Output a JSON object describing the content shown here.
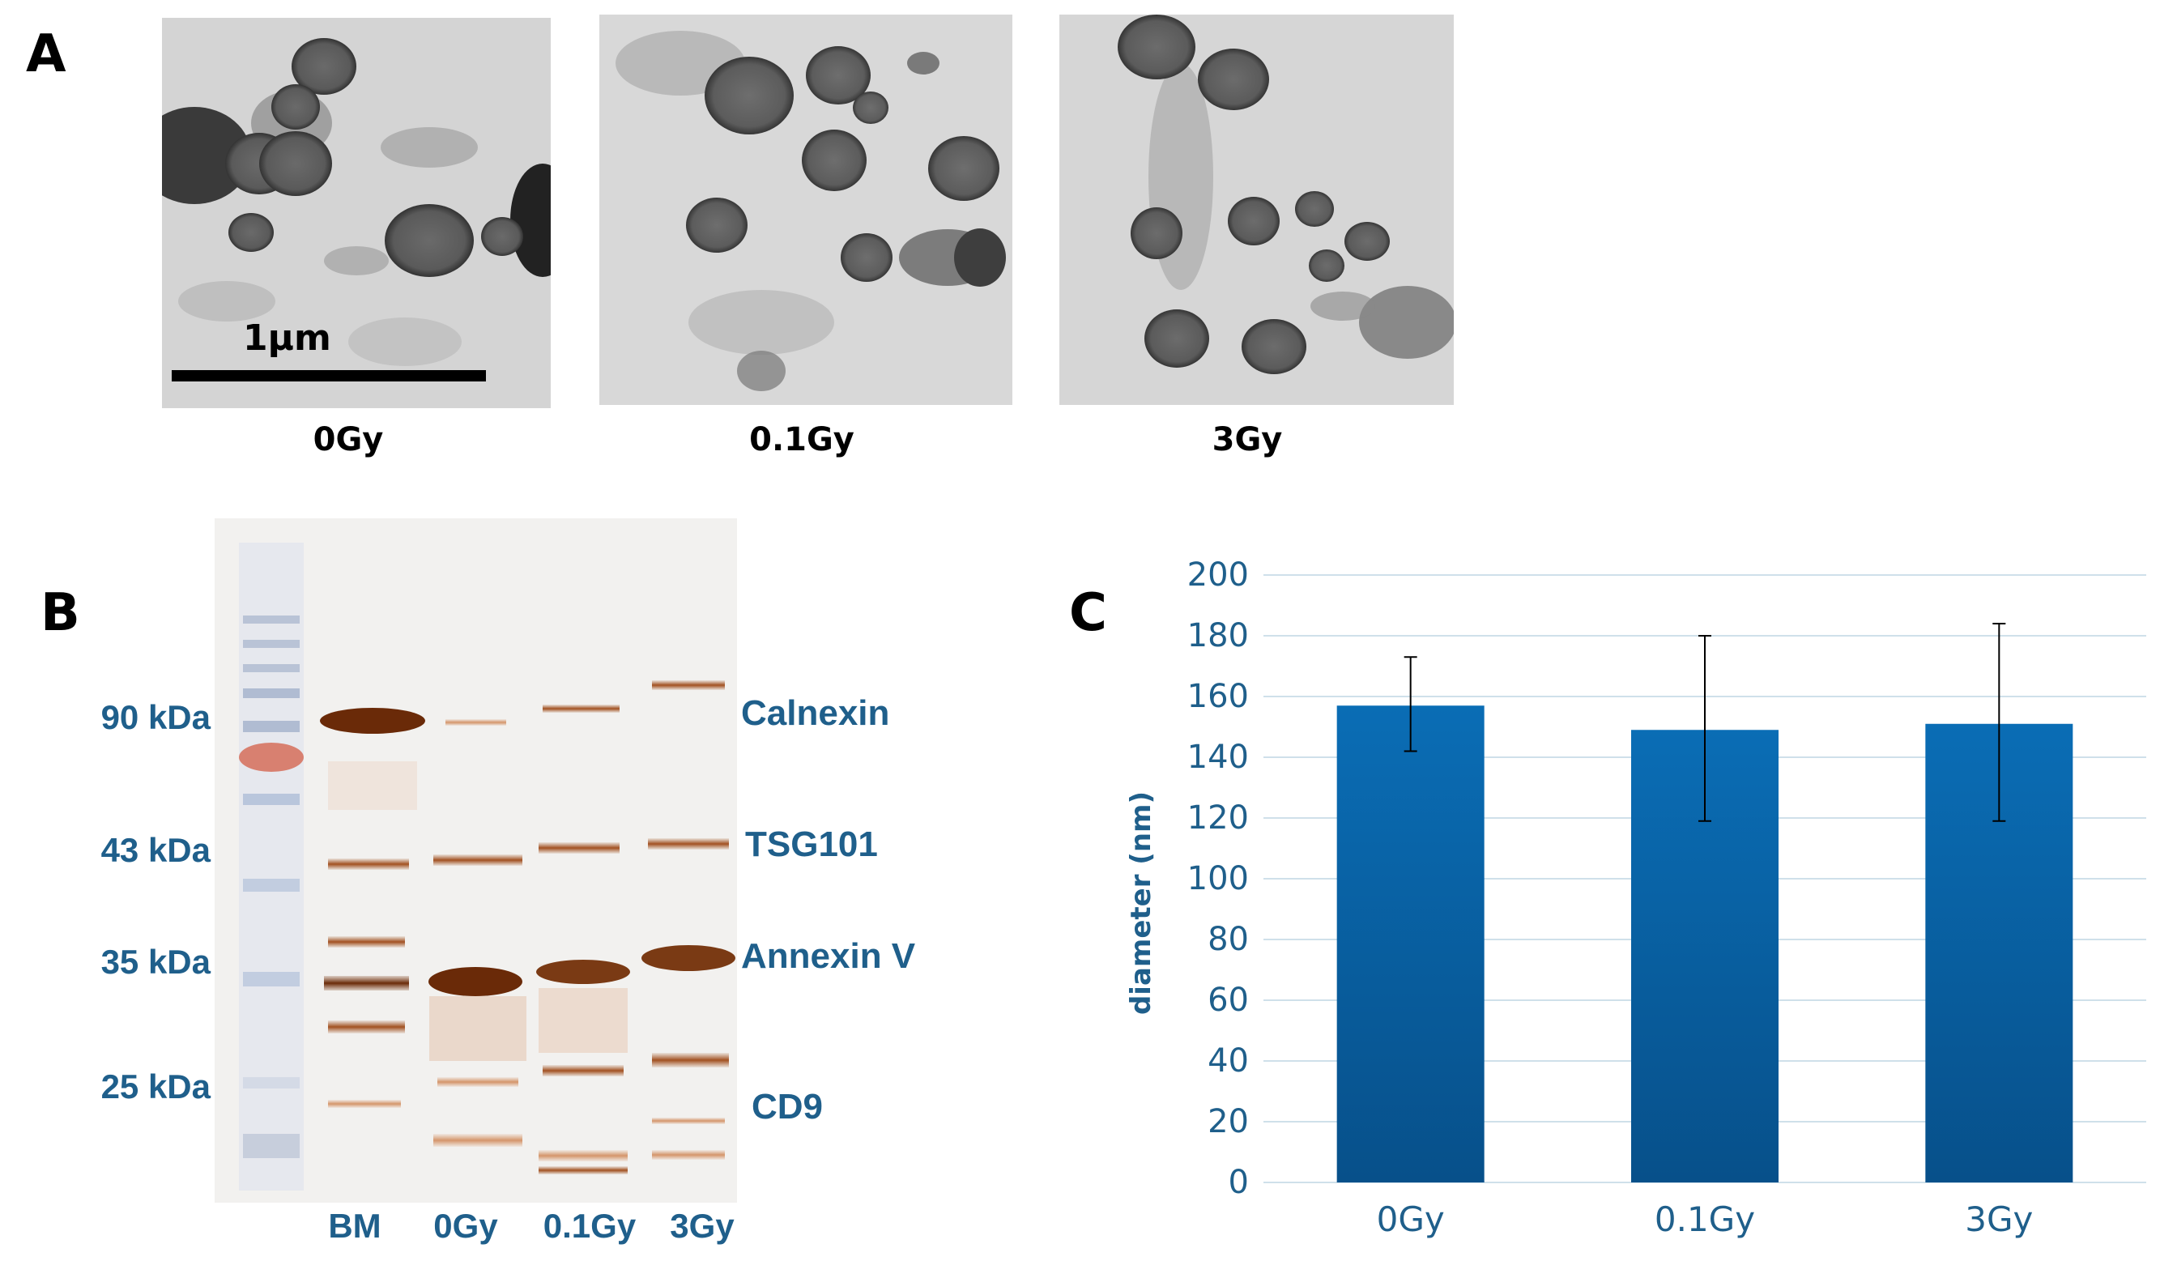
{
  "panels": {
    "a": "A",
    "b": "B",
    "c": "C"
  },
  "panel_a": {
    "images": [
      {
        "caption": "0Gy"
      },
      {
        "caption": "0.1Gy"
      },
      {
        "caption": "3Gy"
      }
    ],
    "scale_bar_label": "1µm"
  },
  "panel_b": {
    "kda_labels": [
      "90 kDa",
      "43 kDa",
      "35 kDa",
      "25 kDa"
    ],
    "protein_labels": [
      "Calnexin",
      "TSG101",
      "Annexin V",
      "CD9"
    ],
    "lane_labels": [
      "BM",
      "0Gy",
      "0.1Gy",
      "3Gy"
    ]
  },
  "chart_data": {
    "type": "bar",
    "categories": [
      "0Gy",
      "0.1Gy",
      "3Gy"
    ],
    "values": [
      157,
      149,
      151
    ],
    "error_high": [
      173,
      180,
      184
    ],
    "error_low": [
      142,
      119,
      119
    ],
    "title": "",
    "xlabel": "",
    "ylabel": "diameter (nm)",
    "ylim": [
      0,
      200
    ],
    "yticks": [
      0,
      20,
      40,
      60,
      80,
      100,
      120,
      140,
      160,
      180,
      200
    ],
    "grid": true,
    "bar_color": "#0a6db5",
    "bar_color_dark": "#07508a",
    "axis_text_color": "#1f5f8b",
    "grid_color": "#cfe0ea"
  }
}
